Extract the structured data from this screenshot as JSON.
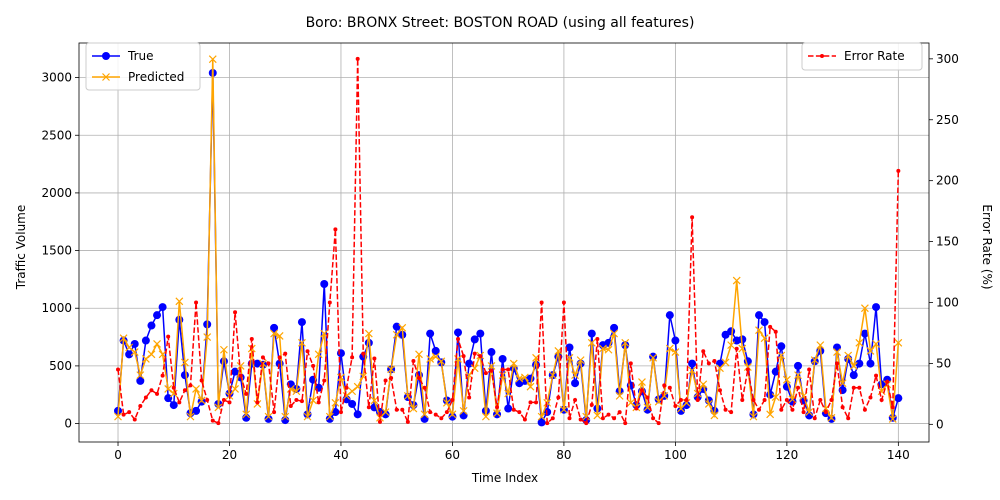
{
  "chart_data": {
    "type": "line",
    "title": "Boro: BRONX Street: BOSTON ROAD (using all features)",
    "xlabel": "Time Index",
    "ylabel": "Traffic Volume",
    "y2label": "Error Rate (%)",
    "xlim": [
      -7,
      145.5
    ],
    "ylim": [
      -160,
      3300
    ],
    "y2lim": [
      -14.5,
      313
    ],
    "xticks": [
      0,
      20,
      40,
      60,
      80,
      100,
      120,
      140
    ],
    "yticks": [
      0,
      500,
      1000,
      1500,
      2000,
      2500,
      3000
    ],
    "y2ticks": [
      0,
      50,
      100,
      150,
      200,
      250,
      300
    ],
    "grid": true,
    "legend_left_position": "upper-left",
    "legend_right_position": "upper-right",
    "colors": {
      "true": "#0000ff",
      "predicted": "#ffa500",
      "error": "#ff0000"
    },
    "series": [
      {
        "name": "True",
        "axis": "left",
        "marker": "circle",
        "values": [
          110,
          720,
          600,
          690,
          370,
          720,
          850,
          940,
          1010,
          220,
          160,
          900,
          420,
          90,
          110,
          190,
          860,
          3040,
          170,
          540,
          260,
          450,
          400,
          50,
          520,
          520,
          510,
          40,
          830,
          520,
          30,
          340,
          300,
          880,
          80,
          380,
          310,
          1210,
          40,
          100,
          610,
          210,
          170,
          80,
          580,
          700,
          140,
          100,
          80,
          470,
          840,
          770,
          230,
          160,
          420,
          40,
          780,
          630,
          530,
          200,
          60,
          790,
          70,
          520,
          730,
          780,
          110,
          620,
          80,
          560,
          130,
          480,
          350,
          370,
          390,
          510,
          10,
          100,
          420,
          580,
          120,
          660,
          350,
          520,
          30,
          780,
          130,
          680,
          700,
          830,
          280,
          680,
          330,
          160,
          280,
          120,
          580,
          210,
          240,
          940,
          720,
          110,
          160,
          520,
          230,
          300,
          200,
          110,
          520,
          770,
          800,
          720,
          730,
          540,
          80,
          940,
          880,
          250,
          450,
          670,
          320,
          190,
          500,
          200,
          70,
          540,
          630,
          90,
          40,
          660,
          290,
          560,
          420,
          520,
          780,
          520,
          1010,
          340,
          380,
          50,
          220
        ]
      },
      {
        "name": "Predicted",
        "axis": "left",
        "marker": "x",
        "values": [
          60,
          740,
          660,
          620,
          420,
          560,
          600,
          690,
          600,
          300,
          260,
          1060,
          530,
          60,
          300,
          200,
          750,
          3160,
          140,
          640,
          240,
          300,
          500,
          80,
          650,
          170,
          520,
          60,
          780,
          760,
          60,
          300,
          280,
          700,
          60,
          200,
          600,
          780,
          60,
          180,
          400,
          240,
          280,
          320,
          410,
          780,
          200,
          50,
          100,
          470,
          770,
          830,
          240,
          130,
          600,
          80,
          560,
          580,
          540,
          180,
          80,
          560,
          110,
          420,
          480,
          590,
          60,
          500,
          90,
          420,
          260,
          520,
          390,
          400,
          320,
          570,
          60,
          180,
          420,
          630,
          120,
          570,
          420,
          550,
          60,
          700,
          70,
          650,
          640,
          780,
          240,
          700,
          180,
          140,
          360,
          140,
          570,
          190,
          240,
          650,
          620,
          130,
          180,
          460,
          260,
          340,
          170,
          70,
          480,
          530,
          680,
          1240,
          650,
          490,
          60,
          810,
          740,
          80,
          230,
          590,
          380,
          210,
          420,
          240,
          100,
          550,
          680,
          130,
          50,
          620,
          350,
          590,
          500,
          700,
          1000,
          630,
          690,
          280,
          340,
          40,
          700
        ]
      },
      {
        "name": "Error Rate",
        "axis": "right",
        "marker": "dot",
        "values": [
          45,
          8,
          10,
          4,
          15,
          22,
          28,
          25,
          40,
          72,
          30,
          18,
          28,
          32,
          100,
          36,
          20,
          3,
          1,
          20,
          18,
          92,
          40,
          25,
          70,
          18,
          55,
          50,
          10,
          55,
          58,
          15,
          20,
          19,
          60,
          48,
          18,
          36,
          100,
          160,
          10,
          30,
          55,
          300,
          58,
          14,
          54,
          2,
          36,
          38,
          12,
          12,
          2,
          52,
          38,
          30,
          10,
          8,
          5,
          10,
          20,
          70,
          56,
          22,
          58,
          56,
          42,
          44,
          14,
          45,
          45,
          12,
          10,
          4,
          18,
          18,
          100,
          1,
          5,
          22,
          100,
          5,
          20,
          4,
          1,
          16,
          70,
          5,
          8,
          5,
          10,
          1,
          50,
          13,
          28,
          22,
          5,
          1,
          32,
          30,
          15,
          20,
          20,
          170,
          20,
          60,
          50,
          52,
          28,
          12,
          10,
          62,
          20,
          45,
          20,
          12,
          20,
          80,
          76,
          12,
          20,
          12,
          30,
          10,
          45,
          5,
          20,
          10,
          20,
          50,
          14,
          5,
          30,
          30,
          12,
          22,
          40,
          20,
          35,
          14,
          208
        ]
      }
    ]
  }
}
